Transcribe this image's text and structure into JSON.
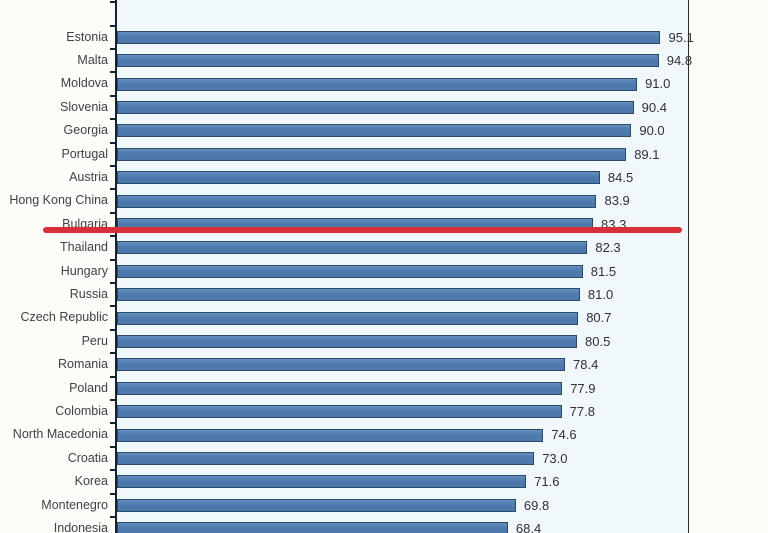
{
  "chart_data": {
    "type": "bar",
    "orientation": "horizontal",
    "title": "",
    "xlabel": "",
    "ylabel": "",
    "xlim": [
      0,
      100
    ],
    "grid": false,
    "legend": false,
    "categories": [
      "Estonia",
      "Malta",
      "Moldova",
      "Slovenia",
      "Georgia",
      "Portugal",
      "Austria",
      "Hong Kong China",
      "Bulgaria",
      "Thailand",
      "Hungary",
      "Russia",
      "Czech Republic",
      "Peru",
      "Romania",
      "Poland",
      "Colombia",
      "North Macedonia",
      "Croatia",
      "Korea",
      "Montenegro",
      "Indonesia"
    ],
    "values": [
      95.1,
      94.8,
      91.0,
      90.4,
      90.0,
      89.1,
      84.5,
      83.9,
      83.3,
      82.3,
      81.5,
      81.0,
      80.7,
      80.5,
      78.4,
      77.9,
      77.8,
      74.6,
      73.0,
      71.6,
      69.8,
      68.4
    ],
    "value_labels": [
      "95.1",
      "94.8",
      "91.0",
      "90.4",
      "90.0",
      "89.1",
      "84.5",
      "83.9",
      "83.3",
      "82.3",
      "81.5",
      "81.0",
      "80.7",
      "80.5",
      "78.4",
      "77.9",
      "77.8",
      "74.6",
      "73.0",
      "71.6",
      "69.8",
      "68.4"
    ],
    "highlight": {
      "category": "Bulgaria",
      "value": 83.3,
      "style": "red-underline"
    }
  },
  "colors": {
    "bar_fill": "#4d79ac",
    "bar_fill_light": "#6490bf",
    "bar_border": "#2c4a67",
    "plot_bg": "#f0f8fb",
    "page_bg": "#fcfcf9",
    "axis": "#16222e",
    "category_text": "#3f4345",
    "value_text": "#2f3234",
    "highlight_red": "#d8303a"
  }
}
